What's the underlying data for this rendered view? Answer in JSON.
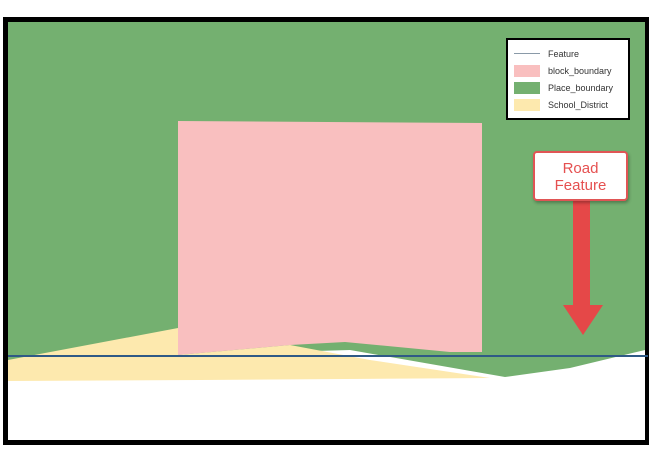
{
  "legend": {
    "items": [
      {
        "label": "Feature",
        "type": "line",
        "color": "#8a9aa8"
      },
      {
        "label": "block_boundary",
        "type": "fill",
        "color": "#f9bfbf"
      },
      {
        "label": "Place_boundary",
        "type": "fill",
        "color": "#74b070"
      },
      {
        "label": "School_District",
        "type": "fill",
        "color": "#fde9ae"
      }
    ]
  },
  "callout": {
    "line1": "Road",
    "line2": "Feature",
    "color": "#e54848"
  },
  "colors": {
    "frame": "#000000",
    "road_line": "#2f5a86"
  }
}
